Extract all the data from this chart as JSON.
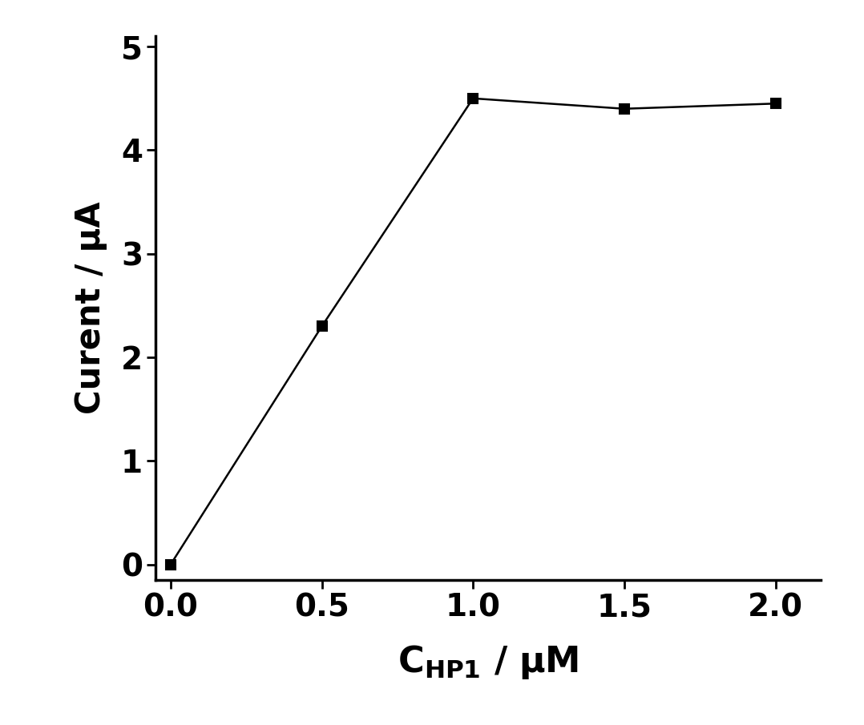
{
  "x": [
    0.0,
    0.5,
    1.0,
    1.5,
    2.0
  ],
  "y": [
    0.0,
    2.3,
    4.5,
    4.4,
    4.45
  ],
  "xlim": [
    -0.05,
    2.15
  ],
  "ylim": [
    -0.15,
    5.1
  ],
  "xticks": [
    0.0,
    0.5,
    1.0,
    1.5,
    2.0
  ],
  "yticks": [
    0,
    1,
    2,
    3,
    4,
    5
  ],
  "ylabel": "Curent / μA",
  "line_color": "#000000",
  "marker": "s",
  "marker_size": 9,
  "marker_color": "#000000",
  "linewidth": 1.8,
  "background_color": "#ffffff",
  "tick_label_fontsize": 28,
  "xlabel_fontsize": 32,
  "ylabel_fontsize": 30,
  "figure_width": 10.78,
  "figure_height": 9.05,
  "dpi": 100
}
